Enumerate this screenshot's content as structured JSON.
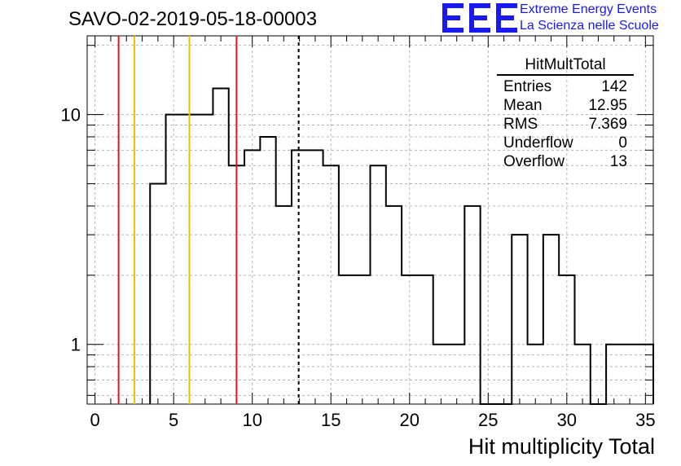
{
  "title": "SAVO-02-2019-05-18-00003",
  "logo": {
    "letters": "EEE",
    "line1": "Extreme Energy Events",
    "line2": "La Scienza nelle Scuole",
    "color": "#1a1af0"
  },
  "stats": {
    "name": "HitMultTotal",
    "rows": [
      {
        "label": "Entries",
        "value": "142"
      },
      {
        "label": "Mean",
        "value": "12.95"
      },
      {
        "label": "RMS",
        "value": "7.369"
      },
      {
        "label": "Underflow",
        "value": "0"
      },
      {
        "label": "Overflow",
        "value": "13"
      }
    ]
  },
  "chart_data": {
    "type": "bar",
    "histogram_style": "step",
    "xlabel": "Hit multiplicity Total",
    "ylabel": "",
    "log_y": true,
    "xlim": [
      -0.5,
      35.5
    ],
    "ylim": [
      0.55,
      22
    ],
    "xticks": [
      0,
      5,
      10,
      15,
      20,
      25,
      30,
      35
    ],
    "yticks": [
      1,
      10
    ],
    "grid": true,
    "bin_edges": [
      3.5,
      4.5,
      5.5,
      6.5,
      7.5,
      8.5,
      9.5,
      10.5,
      11.5,
      12.5,
      13.5,
      14.5,
      15.5,
      16.5,
      17.5,
      18.5,
      19.5,
      20.5,
      21.5,
      22.5,
      23.5,
      24.5,
      25.5,
      26.5,
      27.5,
      28.5,
      29.5,
      30.5,
      31.5,
      32.5,
      33.5,
      34.5,
      35.5
    ],
    "counts": [
      5,
      10,
      10,
      10,
      13,
      6,
      7,
      8,
      4,
      7,
      7,
      6,
      2,
      2,
      6,
      4,
      2,
      2,
      1,
      1,
      4,
      0,
      0,
      3,
      1,
      3,
      2,
      1,
      0,
      1,
      1,
      1
    ],
    "vertical_lines": [
      {
        "x": 1.5,
        "color": "#e8141c",
        "style": "solid"
      },
      {
        "x": 2.5,
        "color": "#f0c000",
        "style": "solid"
      },
      {
        "x": 6.0,
        "color": "#f0c000",
        "style": "solid"
      },
      {
        "x": 9.0,
        "color": "#e8141c",
        "style": "solid"
      },
      {
        "x": 12.95,
        "color": "#000000",
        "style": "dashed"
      }
    ]
  }
}
